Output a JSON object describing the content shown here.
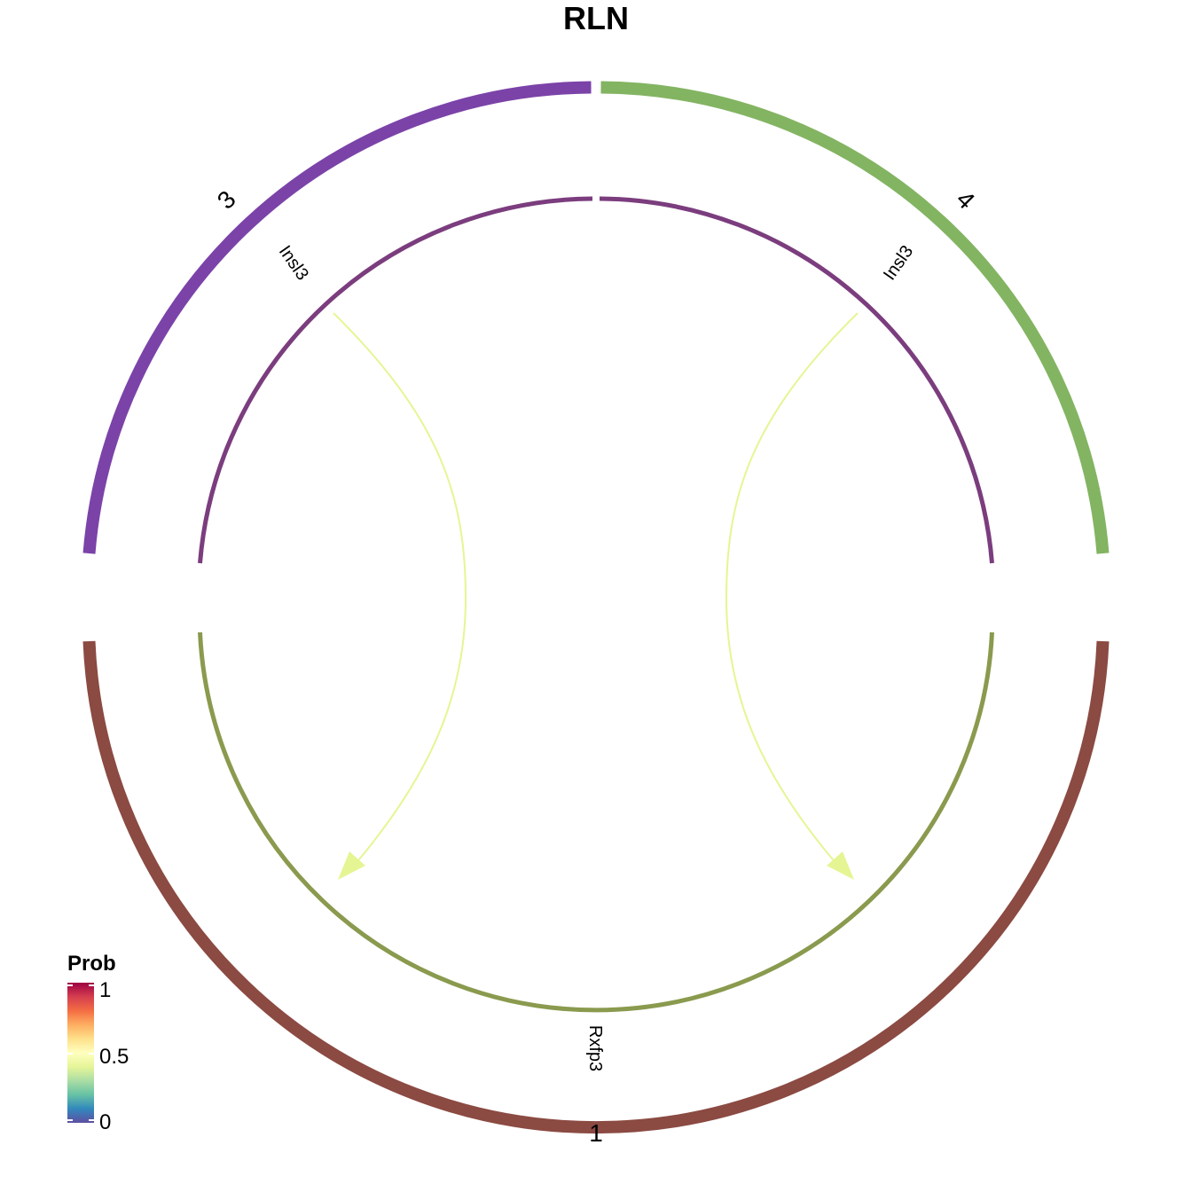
{
  "title": "RLN",
  "sectors": [
    {
      "name": "3",
      "color": "#7B43A8"
    },
    {
      "name": "4",
      "color": "#83B462"
    },
    {
      "name": "1",
      "color": "#8B4A42"
    }
  ],
  "genes": [
    {
      "label": "Insl3",
      "sector": "3",
      "color": "#7B3D7E"
    },
    {
      "label": "Insl3",
      "sector": "4",
      "color": "#7B3D7E"
    },
    {
      "label": "Rxfp3",
      "sector": "1",
      "color": "#8A9A4E"
    }
  ],
  "links": [
    {
      "from": "Insl3",
      "from_sector": "3",
      "to": "Rxfp3",
      "to_sector": "1",
      "prob": 0.52,
      "color": "#E6F593"
    },
    {
      "from": "Insl3",
      "from_sector": "4",
      "to": "Rxfp3",
      "to_sector": "1",
      "prob": 0.52,
      "color": "#E6F593"
    }
  ],
  "legend": {
    "title": "Prob",
    "ticks": [
      "1",
      "0.5",
      "0"
    ],
    "colors": [
      "#9E0142",
      "#D53E4F",
      "#F46D43",
      "#FDAE61",
      "#FEE08B",
      "#FFFFBF",
      "#E6F598",
      "#ABDDA4",
      "#66C2A5",
      "#3288BD",
      "#5E4FA2"
    ]
  }
}
